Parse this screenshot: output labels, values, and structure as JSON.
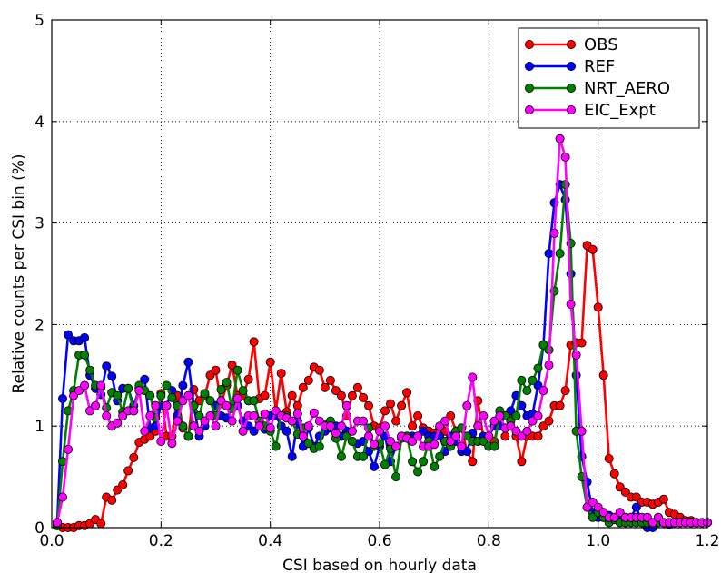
{
  "chart_data": {
    "type": "line",
    "title": "",
    "xlabel": "CSI based on hourly data",
    "ylabel": "Relative counts per CSI bin (%)",
    "xlim": [
      0.0,
      1.2
    ],
    "ylim": [
      0,
      5
    ],
    "xticks": [
      0.0,
      0.2,
      0.4,
      0.6,
      0.8,
      1.0,
      1.2
    ],
    "yticks": [
      0,
      1,
      2,
      3,
      4,
      5
    ],
    "xtick_labels": [
      "0.0",
      "0.2",
      "0.4",
      "0.6",
      "0.8",
      "1.0",
      "1.2"
    ],
    "ytick_labels": [
      "0",
      "1",
      "2",
      "3",
      "4",
      "5"
    ],
    "grid": true,
    "grid_style": "dotted",
    "legend_position": "top-right",
    "bin_width": 0.01,
    "x_start": 0.01,
    "series": [
      {
        "name": "OBS",
        "color": "#ff0000",
        "values": [
          0.02,
          0.0,
          0.0,
          0.0,
          0.02,
          0.02,
          0.04,
          0.08,
          0.04,
          0.3,
          0.27,
          0.37,
          0.42,
          0.56,
          0.69,
          0.84,
          0.87,
          0.9,
          0.95,
          1.32,
          0.9,
          0.9,
          1.3,
          0.98,
          0.9,
          1.36,
          1.25,
          1.3,
          1.5,
          1.55,
          1.22,
          1.4,
          1.6,
          1.3,
          1.3,
          1.46,
          1.83,
          1.27,
          1.3,
          1.63,
          1.15,
          1.52,
          1.14,
          1.3,
          1.2,
          1.38,
          1.45,
          1.58,
          1.55,
          1.38,
          1.45,
          1.35,
          1.3,
          1.1,
          1.3,
          1.38,
          1.28,
          1.2,
          1.0,
          0.98,
          1.15,
          1.22,
          1.05,
          1.2,
          1.33,
          1.0,
          1.1,
          0.98,
          0.95,
          0.93,
          0.98,
          0.95,
          1.1,
          0.95,
          0.98,
          0.75,
          0.65,
          1.25,
          0.88,
          0.8,
          0.85,
          1.1,
          0.9,
          1.1,
          0.9,
          0.65,
          0.9,
          0.9,
          0.9,
          1.0,
          1.05,
          1.2,
          1.2,
          1.35,
          1.8,
          1.82,
          1.82,
          2.78,
          2.74,
          2.17,
          1.5,
          0.68,
          0.53,
          0.4,
          0.35,
          0.3,
          0.3,
          0.25,
          0.25,
          0.23,
          0.25,
          0.28,
          0.15,
          0.13,
          0.1,
          0.07,
          0.07,
          0.05,
          0.05,
          0.05
        ]
      },
      {
        "name": "REF",
        "color": "#0000ff",
        "values": [
          0.05,
          1.27,
          1.9,
          1.84,
          1.84,
          1.87,
          1.5,
          1.37,
          1.31,
          1.59,
          1.49,
          1.25,
          1.37,
          1.37,
          1.2,
          1.37,
          1.46,
          0.98,
          1.0,
          1.2,
          1.2,
          1.35,
          1.1,
          1.4,
          1.63,
          1.2,
          0.9,
          1.0,
          1.1,
          1.2,
          1.1,
          1.08,
          1.18,
          1.2,
          1.05,
          1.0,
          0.95,
          1.05,
          0.97,
          1.1,
          1.1,
          1.0,
          0.95,
          0.7,
          1.05,
          0.8,
          0.98,
          0.8,
          0.9,
          0.95,
          0.98,
          1.0,
          0.9,
          0.95,
          0.85,
          0.83,
          0.85,
          0.75,
          0.6,
          0.8,
          0.9,
          0.65,
          0.8,
          0.9,
          0.9,
          0.9,
          0.9,
          0.95,
          0.9,
          0.9,
          0.9,
          0.75,
          0.9,
          0.85,
          0.75,
          0.75,
          0.93,
          0.85,
          0.9,
          0.9,
          1.0,
          1.0,
          1.1,
          1.15,
          1.3,
          1.2,
          1.1,
          1.12,
          1.4,
          1.8,
          2.7,
          3.2,
          3.38,
          3.23,
          2.5,
          1.5,
          0.7,
          0.45,
          0.15,
          0.1,
          0.1,
          0.12,
          0.08,
          0.08,
          0.05,
          0.1,
          0.2,
          0.05,
          0.0,
          0.0,
          0.1,
          0.05,
          0.03,
          0.05,
          0.05,
          0.05,
          0.05,
          0.05,
          0.05,
          0.05
        ]
      },
      {
        "name": "NRT_AERO",
        "color": "#008000",
        "values": [
          0.02,
          0.65,
          1.15,
          1.35,
          1.7,
          1.7,
          1.55,
          1.4,
          1.38,
          1.18,
          1.33,
          1.3,
          1.14,
          1.37,
          1.15,
          1.4,
          1.35,
          1.3,
          1.08,
          1.3,
          1.4,
          1.28,
          1.2,
          1.0,
          0.9,
          1.2,
          1.1,
          1.32,
          1.25,
          1.1,
          1.36,
          1.43,
          1.17,
          1.55,
          1.35,
          1.25,
          1.25,
          1.05,
          1.0,
          0.95,
          0.8,
          1.1,
          1.1,
          1.05,
          0.92,
          0.98,
          0.83,
          0.78,
          0.8,
          1.02,
          1.05,
          0.88,
          0.7,
          0.9,
          0.85,
          0.7,
          0.7,
          0.98,
          0.8,
          0.83,
          0.62,
          0.78,
          0.5,
          0.88,
          0.9,
          0.65,
          0.55,
          0.65,
          0.85,
          0.6,
          0.7,
          0.85,
          0.8,
          0.95,
          0.98,
          0.9,
          0.85,
          0.85,
          0.85,
          0.8,
          0.8,
          1.15,
          1.1,
          1.05,
          1.1,
          1.45,
          1.35,
          1.45,
          1.57,
          1.8,
          1.75,
          2.33,
          2.7,
          3.38,
          2.8,
          0.95,
          0.5,
          0.2,
          0.1,
          0.15,
          0.1,
          0.05,
          0.08,
          0.05,
          0.05,
          0.05,
          0.05,
          0.05,
          0.05,
          0.05,
          0.05,
          0.05,
          0.05,
          0.05,
          0.05,
          0.05,
          0.05,
          0.05,
          0.05,
          0.05
        ]
      },
      {
        "name": "EIC_Expt",
        "color": "#ff00ff",
        "values": [
          0.05,
          0.3,
          0.77,
          1.3,
          1.35,
          1.4,
          1.15,
          1.2,
          1.4,
          1.1,
          1.0,
          1.03,
          1.1,
          1.15,
          1.15,
          1.35,
          0.95,
          1.1,
          1.2,
          0.85,
          1.2,
          0.83,
          1.05,
          1.25,
          1.3,
          1.0,
          0.95,
          1.05,
          1.1,
          1.0,
          1.25,
          1.2,
          1.05,
          1.27,
          0.95,
          1.1,
          1.1,
          1.0,
          1.12,
          0.98,
          1.15,
          1.1,
          1.08,
          1.05,
          1.12,
          0.9,
          1.0,
          1.13,
          1.05,
          1.0,
          1.0,
          0.93,
          1.0,
          1.2,
          0.95,
          1.05,
          1.05,
          0.9,
          0.82,
          0.95,
          1.0,
          0.85,
          0.8,
          0.9,
          0.88,
          0.85,
          0.9,
          0.8,
          0.8,
          0.82,
          1.0,
          1.05,
          0.85,
          0.9,
          0.8,
          1.2,
          1.48,
          1.0,
          1.1,
          0.9,
          1.05,
          1.1,
          0.98,
          1.0,
          0.95,
          0.9,
          0.95,
          1.05,
          1.1,
          1.35,
          1.6,
          2.9,
          3.83,
          3.65,
          2.2,
          1.7,
          0.95,
          0.2,
          0.25,
          0.2,
          0.15,
          0.1,
          0.1,
          0.15,
          0.1,
          0.1,
          0.1,
          0.1,
          0.1,
          0.05,
          0.1,
          0.05,
          0.05,
          0.05,
          0.05,
          0.05,
          0.05,
          0.05,
          0.05,
          0.05
        ]
      }
    ]
  }
}
